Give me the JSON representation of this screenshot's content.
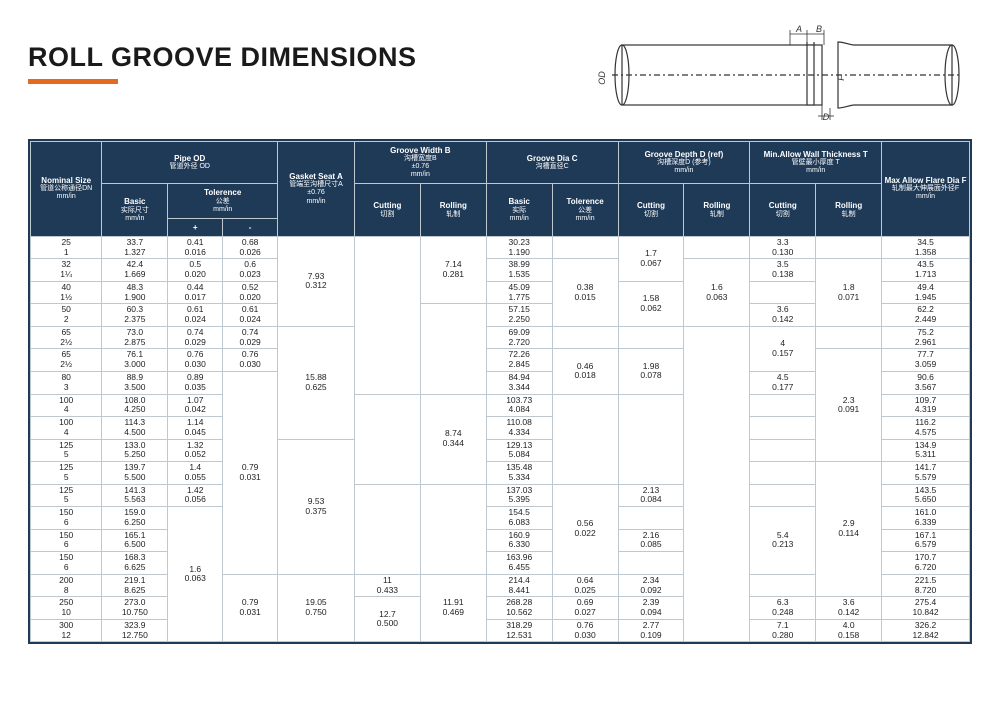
{
  "title": "ROLL GROOVE DIMENSIONS",
  "diagram_labels": {
    "A": "A",
    "B": "B",
    "OD": "OD",
    "D": "D",
    "F": "F"
  },
  "headers": {
    "nominal": {
      "l1": "Nominal Size",
      "l2": "管道公称通径DN",
      "l3": "mm/in"
    },
    "pipeOD": {
      "title": "Pipe OD",
      "sub": "管道外径 OD",
      "basic": {
        "l1": "Basic",
        "l2": "实际尺寸",
        "l3": "mm/in"
      },
      "tol": {
        "l1": "Tolerence",
        "l2": "公差",
        "l3": "mm/in",
        "plus": "+",
        "minus": "-"
      }
    },
    "gasket": {
      "l1": "Gasket Seat A",
      "l2": "管端至沟槽尺寸A",
      "l3": "±0.76",
      "l4": "mm/in"
    },
    "grooveB": {
      "l1": "Groove Width B",
      "l2": "沟槽宽度B",
      "l3": "±0.76",
      "l4": "mm/in",
      "cut": {
        "l1": "Cutting",
        "l2": "切割"
      },
      "roll": {
        "l1": "Rolling",
        "l2": "轧制"
      }
    },
    "grooveC": {
      "l1": "Groove Dia C",
      "l2": "沟槽直径C",
      "basic": {
        "l1": "Basic",
        "l2": "实际",
        "l3": "mm/in"
      },
      "tol": {
        "l1": "Tolerence",
        "l2": "公差",
        "l3": "mm/in"
      }
    },
    "grooveD": {
      "l1": "Groove Depth D (ref)",
      "l2": "沟槽深度D (参考)",
      "l3": "mm/in",
      "cut": {
        "l1": "Cutting",
        "l2": "切割"
      },
      "roll": {
        "l1": "Rolling",
        "l2": "轧制"
      }
    },
    "wallT": {
      "l1": "Min.Allow Wall",
      "l1b": "Thickness T",
      "l2": "管壁最小厚度 T",
      "l3": "mm/in",
      "cut": {
        "l1": "Cutting",
        "l2": "切割"
      },
      "roll": {
        "l1": "Rolling",
        "l2": "轧制"
      }
    },
    "flareF": {
      "l1": "Max Allow Flare Dia F",
      "l2": "轧制最大伸展面外径F",
      "l3": "mm/in"
    }
  },
  "rows": [
    {
      "n": [
        "25",
        "1"
      ],
      "b": [
        "33.7",
        "1.327"
      ],
      "p": [
        "0.41",
        "0.016"
      ],
      "m": [
        "0.68",
        "0.026"
      ],
      "c": [
        "30.23",
        "1.190"
      ],
      "f": [
        "34.5",
        "1.358"
      ],
      "tc": [
        "3.3",
        "0.130"
      ]
    },
    {
      "n": [
        "32",
        "1¼"
      ],
      "b": [
        "42.4",
        "1.669"
      ],
      "p": [
        "0.5",
        "0.020"
      ],
      "m": [
        "0.6",
        "0.023"
      ],
      "c": [
        "38.99",
        "1.535"
      ],
      "f": [
        "43.5",
        "1.713"
      ],
      "tc": [
        "3.5",
        "0.138"
      ]
    },
    {
      "n": [
        "40",
        "1½"
      ],
      "b": [
        "48.3",
        "1.900"
      ],
      "p": [
        "0.44",
        "0.017"
      ],
      "m": [
        "0.52",
        "0.020"
      ],
      "c": [
        "45.09",
        "1.775"
      ],
      "f": [
        "49.4",
        "1.945"
      ]
    },
    {
      "n": [
        "50",
        "2"
      ],
      "b": [
        "60.3",
        "2.375"
      ],
      "p": [
        "0.61",
        "0.024"
      ],
      "m": [
        "0.61",
        "0.024"
      ],
      "c": [
        "57.15",
        "2.250"
      ],
      "f": [
        "62.2",
        "2.449"
      ],
      "tc": [
        "3.6",
        "0.142"
      ]
    },
    {
      "n": [
        "65",
        "2½"
      ],
      "b": [
        "73.0",
        "2.875"
      ],
      "p": [
        "0.74",
        "0.029"
      ],
      "m": [
        "0.74",
        "0.029"
      ],
      "c": [
        "69.09",
        "2.720"
      ],
      "f": [
        "75.2",
        "2.961"
      ]
    },
    {
      "n": [
        "65",
        "2½"
      ],
      "b": [
        "76.1",
        "3.000"
      ],
      "p": [
        "0.76",
        "0.030"
      ],
      "m": [
        "0.76",
        "0.030"
      ],
      "c": [
        "72.26",
        "2.845"
      ],
      "f": [
        "77.7",
        "3.059"
      ]
    },
    {
      "n": [
        "80",
        "3"
      ],
      "b": [
        "88.9",
        "3.500"
      ],
      "p": [
        "0.89",
        "0.035"
      ],
      "c": [
        "84.94",
        "3.344"
      ],
      "f": [
        "90.6",
        "3.567"
      ],
      "tc": [
        "4.5",
        "0.177"
      ]
    },
    {
      "n": [
        "100",
        "4"
      ],
      "b": [
        "108.0",
        "4.250"
      ],
      "p": [
        "1.07",
        "0.042"
      ],
      "c": [
        "103.73",
        "4.084"
      ],
      "f": [
        "109.7",
        "4.319"
      ]
    },
    {
      "n": [
        "100",
        "4"
      ],
      "b": [
        "114.3",
        "4.500"
      ],
      "p": [
        "1.14",
        "0.045"
      ],
      "c": [
        "110.08",
        "4.334"
      ],
      "f": [
        "116.2",
        "4.575"
      ]
    },
    {
      "n": [
        "125",
        "5"
      ],
      "b": [
        "133.0",
        "5.250"
      ],
      "p": [
        "1.32",
        "0.052"
      ],
      "c": [
        "129.13",
        "5.084"
      ],
      "f": [
        "134.9",
        "5.311"
      ]
    },
    {
      "n": [
        "125",
        "5"
      ],
      "b": [
        "139.7",
        "5.500"
      ],
      "p": [
        "1.4",
        "0.055"
      ],
      "c": [
        "135.48",
        "5.334"
      ],
      "f": [
        "141.7",
        "5.579"
      ]
    },
    {
      "n": [
        "125",
        "5"
      ],
      "b": [
        "141.3",
        "5.563"
      ],
      "p": [
        "1.42",
        "0.056"
      ],
      "c": [
        "137.03",
        "5.395"
      ],
      "f": [
        "143.5",
        "5.650"
      ]
    },
    {
      "n": [
        "150",
        "6"
      ],
      "b": [
        "159.0",
        "6.250"
      ],
      "c": [
        "154.5",
        "6.083"
      ],
      "f": [
        "161.0",
        "6.339"
      ]
    },
    {
      "n": [
        "150",
        "6"
      ],
      "b": [
        "165.1",
        "6.500"
      ],
      "c": [
        "160.9",
        "6.330"
      ],
      "f": [
        "167.1",
        "6.579"
      ]
    },
    {
      "n": [
        "150",
        "6"
      ],
      "b": [
        "168.3",
        "6.625"
      ],
      "c": [
        "163.96",
        "6.455"
      ],
      "f": [
        "170.7",
        "6.720"
      ]
    },
    {
      "n": [
        "200",
        "8"
      ],
      "b": [
        "219.1",
        "8.625"
      ],
      "c": [
        "214.4",
        "8.441"
      ],
      "f": [
        "221.5",
        "8.720"
      ]
    },
    {
      "n": [
        "250",
        "10"
      ],
      "b": [
        "273.0",
        "10.750"
      ],
      "c": [
        "268.28",
        "10.562"
      ],
      "f": [
        "275.4",
        "10.842"
      ],
      "tc": [
        "6.3",
        "0.248"
      ],
      "tr": [
        "3.6",
        "0.142"
      ]
    },
    {
      "n": [
        "300",
        "12"
      ],
      "b": [
        "323.9",
        "12.750"
      ],
      "c": [
        "318.29",
        "12.531"
      ],
      "f": [
        "326.2",
        "12.842"
      ],
      "tc": [
        "7.1",
        "0.280"
      ],
      "tr": [
        "4.0",
        "0.158"
      ]
    }
  ],
  "spans": {
    "gasket": [
      {
        "v": [
          "7.93",
          "0.312"
        ],
        "r": 4
      },
      {
        "v": [
          "15.88",
          "0.625"
        ],
        "r": 5
      },
      {
        "v": [
          "9.53",
          "0.375"
        ],
        "r": 6
      },
      {
        "v": [
          "19.05",
          "0.750"
        ],
        "r": 3
      }
    ],
    "cutB": [
      {
        "v": [
          "",
          ""
        ],
        "r": 7
      },
      {
        "v": [
          "",
          ""
        ],
        "r": 4
      },
      {
        "v": [
          "",
          ""
        ],
        "r": 4
      },
      {
        "v": [
          "11",
          "0.433"
        ],
        "r": 1
      },
      {
        "v": [
          "12.7",
          "0.500"
        ],
        "r": 2
      }
    ],
    "rollB": [
      {
        "v": [
          "7.14",
          "0.281"
        ],
        "r": 3
      },
      {
        "v": [
          "",
          ""
        ],
        "r": 4
      },
      {
        "v": [
          "8.74",
          "0.344"
        ],
        "r": 4
      },
      {
        "v": [
          "",
          ""
        ],
        "r": 4
      },
      {
        "v": [
          "11.91",
          "0.469"
        ],
        "r": 3
      }
    ],
    "tolC": [
      {
        "v": [
          "",
          ""
        ],
        "r": 1
      },
      {
        "v": [
          "0.38",
          "0.015"
        ],
        "r": 3
      },
      {
        "v": [
          "",
          ""
        ],
        "r": 1
      },
      {
        "v": [
          "0.46",
          "0.018"
        ],
        "r": 2
      },
      {
        "v": [
          "",
          ""
        ],
        "r": 4
      },
      {
        "v": [
          "0.56",
          "0.022"
        ],
        "r": 4
      },
      {
        "v": [
          "0.64",
          "0.025"
        ],
        "r": 1
      },
      {
        "v": [
          "0.69",
          "0.027"
        ],
        "r": 1
      },
      {
        "v": [
          "0.76",
          "0.030"
        ],
        "r": 1
      }
    ],
    "cutD": [
      {
        "v": [
          "1.7",
          "0.067"
        ],
        "r": 2
      },
      {
        "v": [
          "1.58",
          "0.062"
        ],
        "r": 2
      },
      {
        "v": [
          "",
          ""
        ],
        "r": 1
      },
      {
        "v": [
          "1.98",
          "0.078"
        ],
        "r": 2
      },
      {
        "v": [
          "",
          ""
        ],
        "r": 4
      },
      {
        "v": [
          "2.13",
          "0.084"
        ],
        "r": 1
      },
      {
        "v": [
          "",
          ""
        ],
        "r": 1
      },
      {
        "v": [
          "2.16",
          "0.085"
        ],
        "r": 1
      },
      {
        "v": [
          "",
          ""
        ],
        "r": 1
      },
      {
        "v": [
          "2.34",
          "0.092"
        ],
        "r": 1
      },
      {
        "v": [
          "2.39",
          "0.094"
        ],
        "r": 1
      },
      {
        "v": [
          "2.77",
          "0.109"
        ],
        "r": 1
      }
    ],
    "rollD": [
      {
        "v": [
          "",
          ""
        ],
        "r": 1
      },
      {
        "v": [
          "1.6",
          "0.063"
        ],
        "r": 3
      },
      {
        "v": [
          "",
          ""
        ],
        "r": 14
      }
    ],
    "minus_big": [
      {
        "v": [
          "0.79",
          "0.031"
        ],
        "r": 9
      }
    ],
    "plus_big": [
      {
        "v": [
          "1.6",
          "0.063"
        ],
        "r": 6
      }
    ],
    "tc_4": [
      {
        "v": [
          "4",
          "0.157"
        ],
        "r": 2
      }
    ],
    "tc_54": [
      {
        "v": [
          "5.4",
          "0.213"
        ],
        "r": 3
      }
    ],
    "tr_18": [
      {
        "v": [
          "1.8",
          "0.071"
        ],
        "r": 3
      }
    ],
    "tr_23": [
      {
        "v": [
          "2.3",
          "0.091"
        ],
        "r": 5
      }
    ],
    "tr_29": [
      {
        "v": [
          "2.9",
          "0.114"
        ],
        "r": 6
      }
    ]
  }
}
